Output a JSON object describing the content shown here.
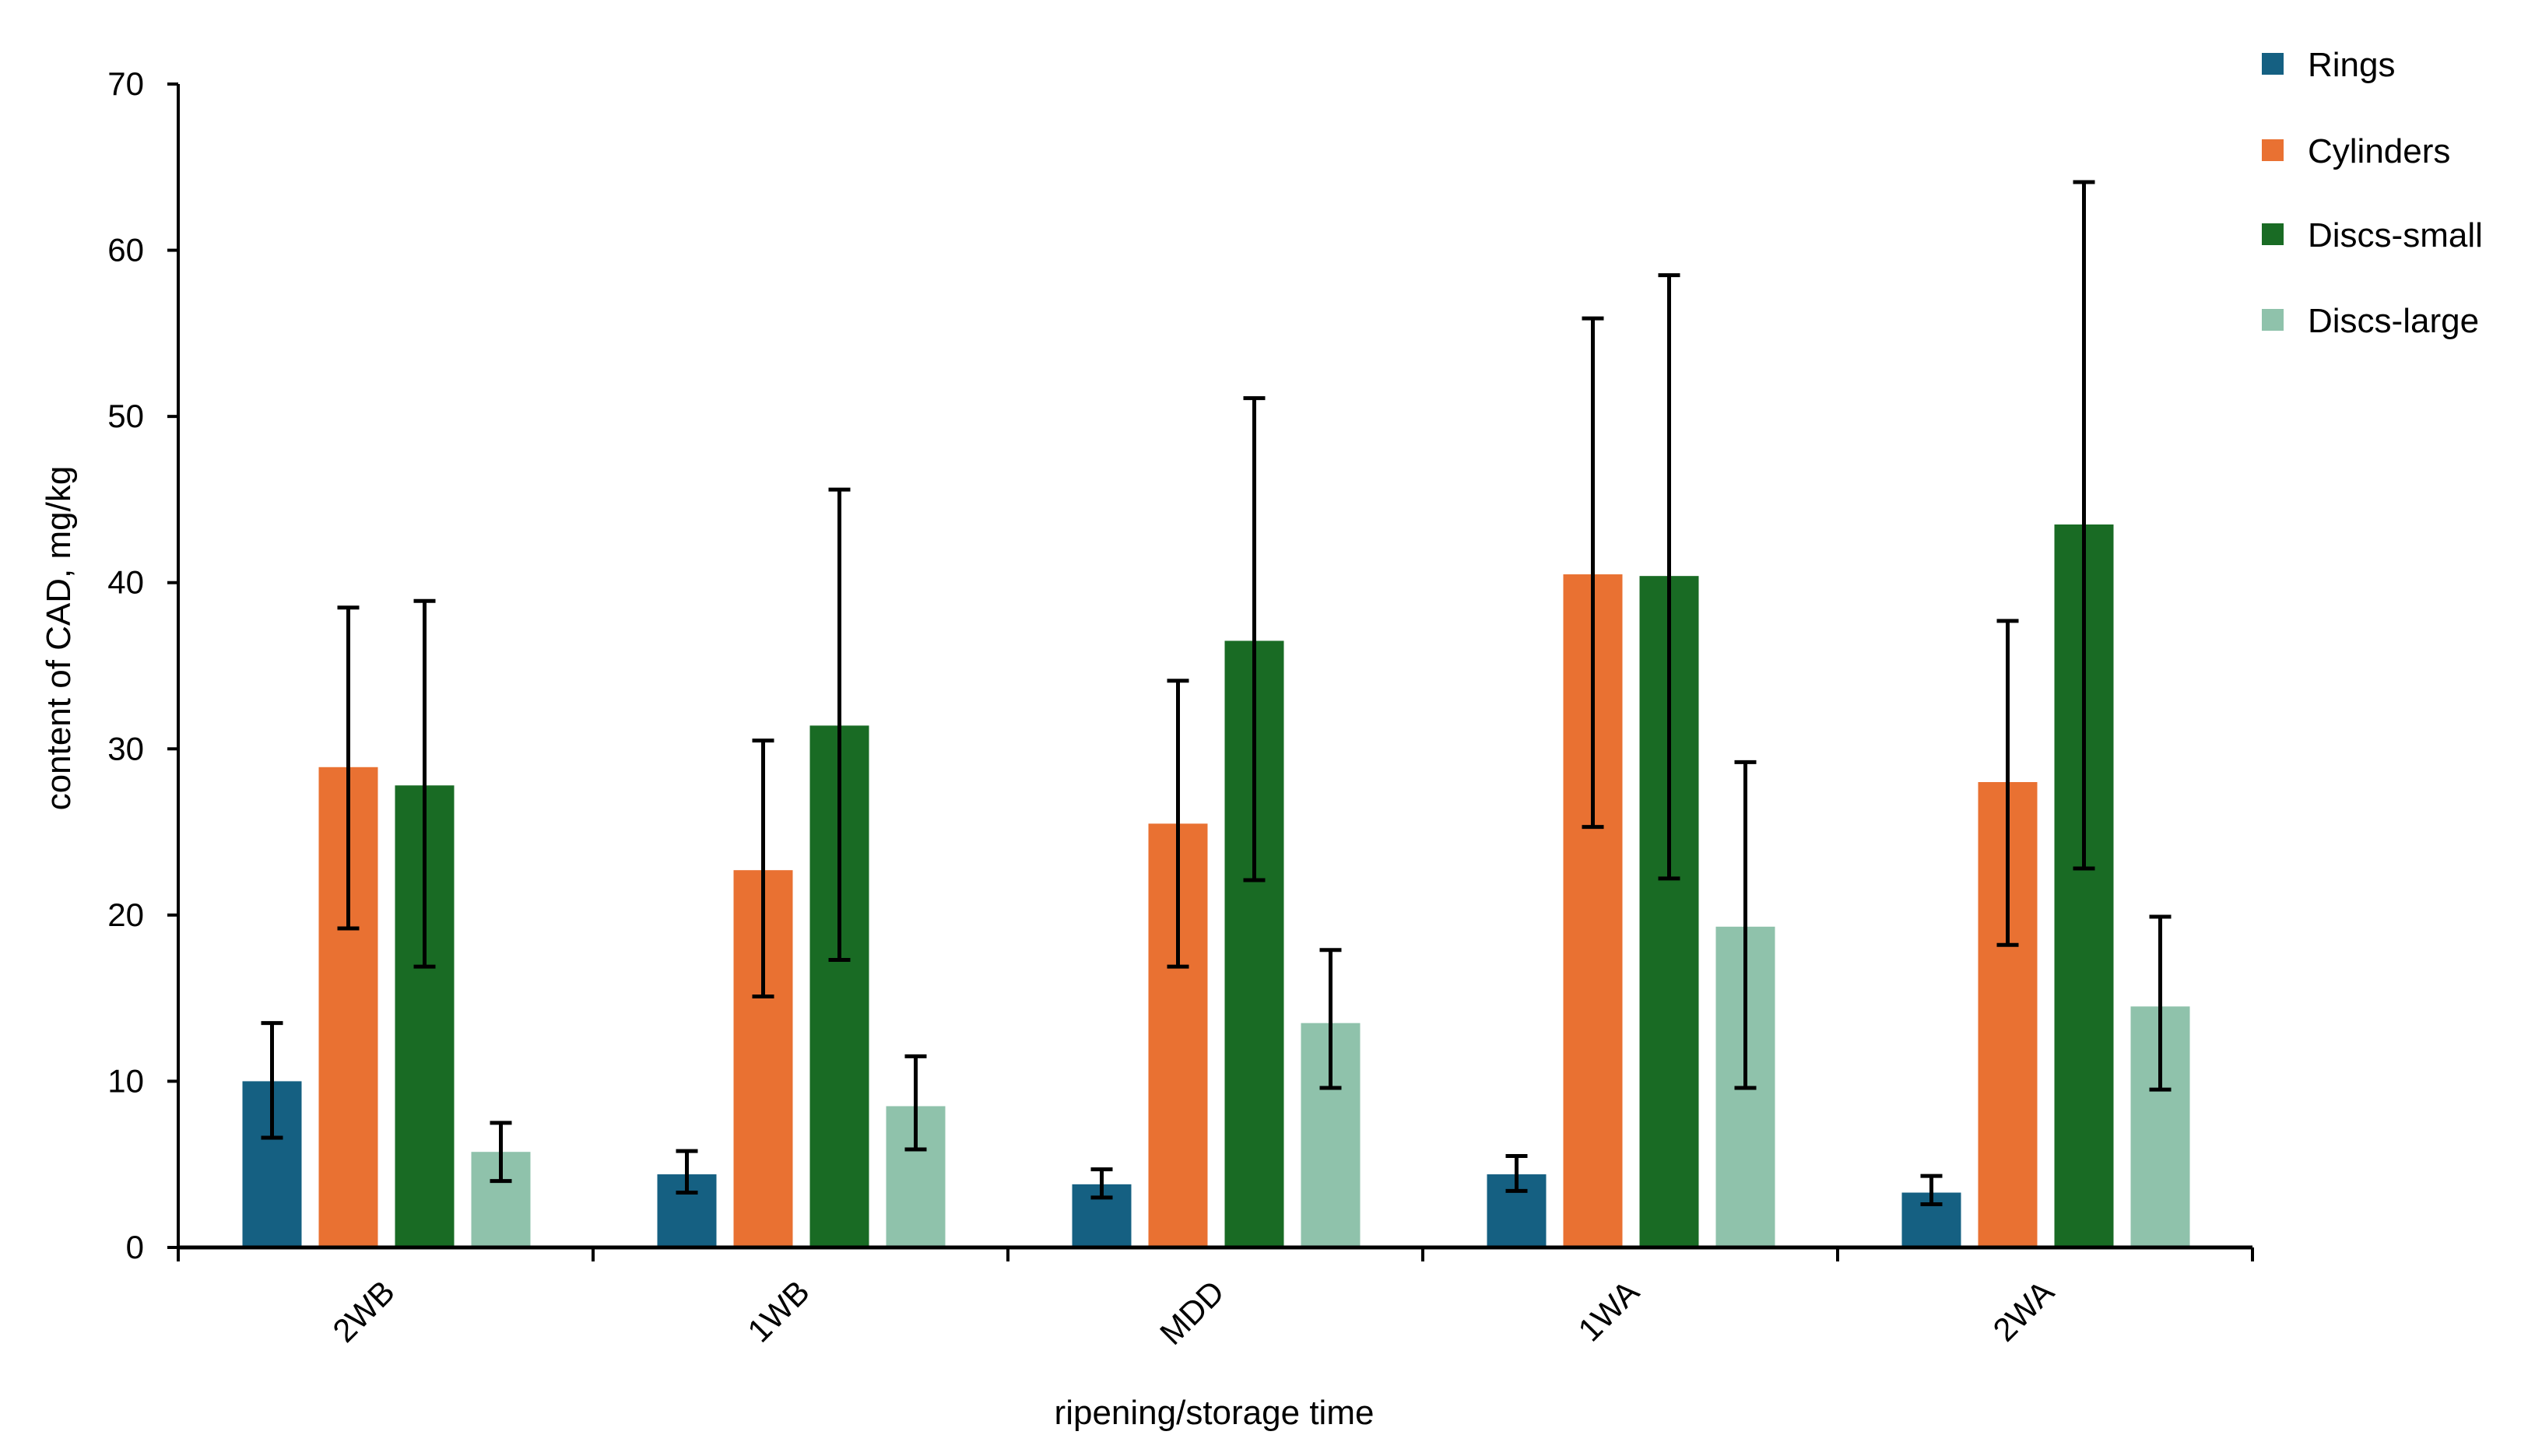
{
  "chart_data": {
    "type": "bar",
    "title": "",
    "xlabel": "ripening/storage time",
    "ylabel": "content of CAD, mg/kg",
    "ylim": [
      0,
      70
    ],
    "yticks": [
      "0",
      "10",
      "20",
      "30",
      "40",
      "50",
      "60",
      "70"
    ],
    "grid": false,
    "legend_position": "top-right",
    "categories": [
      "2WB",
      "1WB",
      "MDD",
      "1WA",
      "2WA"
    ],
    "series": [
      {
        "name": "Rings",
        "color": "#156082",
        "values": [
          10.0,
          4.4,
          3.8,
          4.4,
          3.3
        ],
        "error_low": [
          6.6,
          3.3,
          3.0,
          3.4,
          2.6
        ],
        "error_high": [
          13.5,
          5.8,
          4.7,
          5.5,
          4.3
        ]
      },
      {
        "name": "Cylinders",
        "color": "#E97132",
        "values": [
          28.9,
          22.7,
          25.5,
          40.5,
          28.0
        ],
        "error_low": [
          19.2,
          15.1,
          16.9,
          25.3,
          18.2
        ],
        "error_high": [
          38.5,
          30.5,
          34.1,
          55.9,
          37.7
        ]
      },
      {
        "name": "Discs-small",
        "color": "#196B24",
        "values": [
          27.8,
          31.4,
          36.5,
          40.4,
          43.5
        ],
        "error_low": [
          16.9,
          17.3,
          22.1,
          22.2,
          22.8
        ],
        "error_high": [
          38.9,
          45.6,
          51.1,
          58.5,
          64.1
        ]
      },
      {
        "name": "Discs-large",
        "color": "#8FC2AB",
        "values": [
          5.75,
          8.5,
          13.5,
          19.3,
          14.5
        ],
        "error_low": [
          4.0,
          5.9,
          9.6,
          9.6,
          9.5
        ],
        "error_high": [
          7.5,
          11.5,
          17.9,
          29.2,
          19.9
        ]
      }
    ]
  }
}
